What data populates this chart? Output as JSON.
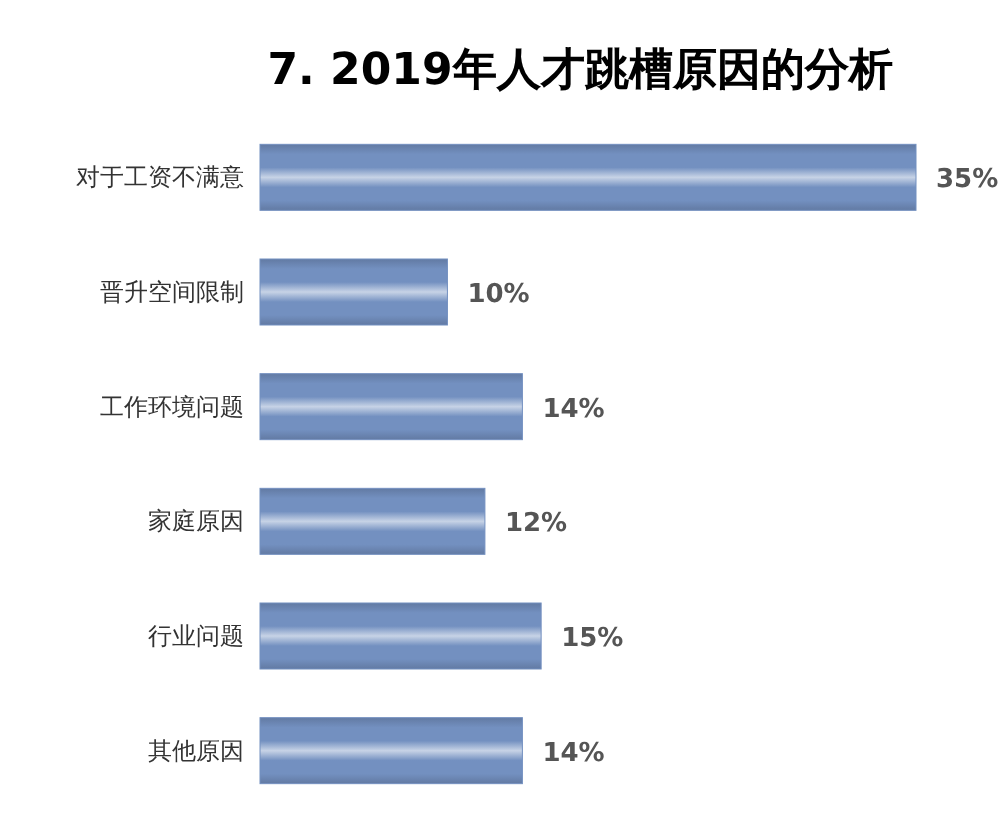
{
  "chart_data": {
    "type": "bar",
    "orientation": "horizontal",
    "title": "7. 2019年人才跳槽原因的分析",
    "categories": [
      "对于工资不满意",
      "晋升空间限制",
      "工作环境问题",
      "家庭原因",
      "行业问题",
      "其他原因"
    ],
    "values": [
      35,
      10,
      14,
      12,
      15,
      14
    ],
    "value_labels": [
      "35%",
      "10%",
      "14%",
      "12%",
      "15%",
      "14%"
    ],
    "color": "#7390c0"
  }
}
